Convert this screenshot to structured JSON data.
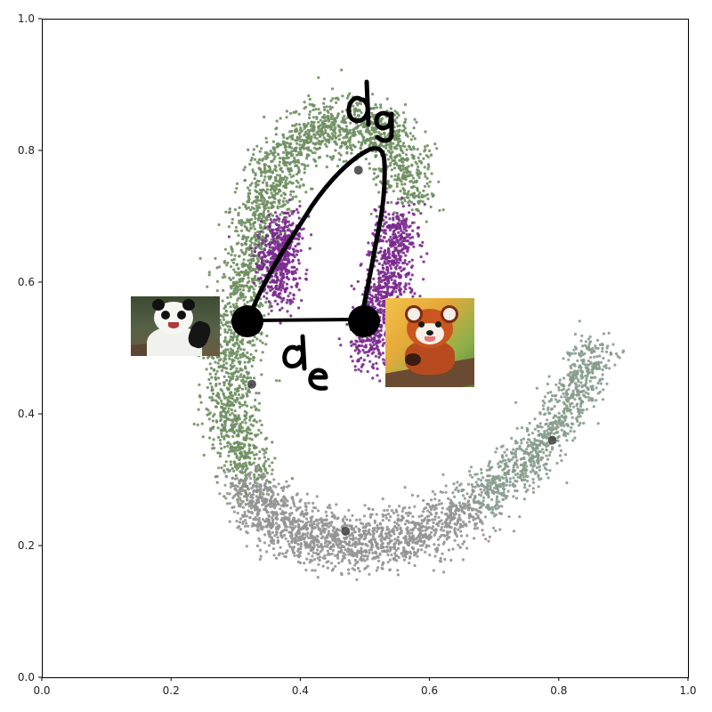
{
  "chart_data": {
    "type": "scatter",
    "title": "",
    "xlabel": "",
    "ylabel": "",
    "xlim": [
      0.0,
      1.0
    ],
    "ylim": [
      0.0,
      1.0
    ],
    "x_ticks": [
      "0.0",
      "0.2",
      "0.4",
      "0.6",
      "0.8",
      "1.0"
    ],
    "y_ticks": [
      "0.0",
      "0.2",
      "0.4",
      "0.6",
      "0.8",
      "1.0"
    ],
    "grid": false,
    "legend": null,
    "colors": {
      "green_arc": "#6f8f62",
      "purple": "#7b2a8e",
      "gray": "#949494",
      "sage_gray": "#879c8c",
      "centroid": "#3c3c3c",
      "annotation": "#000000"
    },
    "clusters": [
      {
        "color_key": "green_arc",
        "center": [
          0.49,
          0.77
        ],
        "desc": "top of arch"
      },
      {
        "color_key": "green_arc",
        "center": [
          0.32,
          0.445
        ],
        "desc": "left leg"
      },
      {
        "color_key": "purple",
        "center": [
          0.385,
          0.63
        ],
        "desc": "inner left"
      },
      {
        "color_key": "purple",
        "center": [
          0.53,
          0.58
        ],
        "desc": "inner right"
      },
      {
        "color_key": "gray",
        "center": [
          0.47,
          0.22
        ],
        "desc": "bottom arc"
      },
      {
        "color_key": "sage_gray",
        "center": [
          0.79,
          0.36
        ],
        "desc": "right tail"
      }
    ],
    "centroids": [
      [
        0.49,
        0.77
      ],
      [
        0.325,
        0.445
      ],
      [
        0.47,
        0.222
      ],
      [
        0.79,
        0.36
      ]
    ],
    "annotation": {
      "endpoints": [
        [
          0.318,
          0.542
        ],
        [
          0.498,
          0.542
        ]
      ],
      "labels": {
        "geodesic": "dg",
        "euclidean": "de"
      }
    },
    "images": [
      {
        "name": "panda",
        "icon": "panda-photo"
      },
      {
        "name": "red panda",
        "icon": "red-panda-photo"
      }
    ]
  }
}
